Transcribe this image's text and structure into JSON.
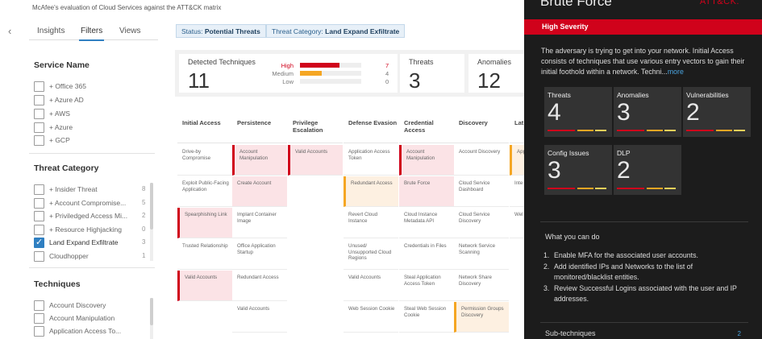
{
  "page": {
    "description": "McAfee's evaluation of Cloud Services against the ATT&CK matrix"
  },
  "tabs": {
    "insights": "Insights",
    "filters": "Filters",
    "views": "Views"
  },
  "service_name": {
    "title": "Service Name",
    "items": [
      "+ Office 365",
      "+ Azure AD",
      "+ AWS",
      "+ Azure",
      "+ GCP"
    ]
  },
  "threat_category": {
    "title": "Threat Category",
    "items": [
      {
        "label": "+ Insider Threat",
        "count": "8",
        "checked": false
      },
      {
        "label": "+ Account Compromise...",
        "count": "5",
        "checked": false
      },
      {
        "label": "+ Priviledged Access Mi...",
        "count": "2",
        "checked": false
      },
      {
        "label": "+ Resource Highjacking",
        "count": "0",
        "checked": false
      },
      {
        "label": "Land Expand Exfiltrate",
        "count": "3",
        "checked": true
      },
      {
        "label": "Cloudhopper",
        "count": "1",
        "checked": false
      }
    ]
  },
  "techniques": {
    "title": "Techniques",
    "items": [
      "Account Discovery",
      "Account Manipulation",
      "Application Access To..."
    ]
  },
  "chips": {
    "status_label": "Status:",
    "status_value": "Potential Threats",
    "category_label": "Threat Category:",
    "category_value": "Land Expand Exfiltrate"
  },
  "summary": {
    "detected_title": "Detected Techniques",
    "detected_value": "11",
    "severity": [
      {
        "label": "High",
        "count": "7",
        "fraction": 0.64,
        "color": "#d0021b"
      },
      {
        "label": "Medium",
        "count": "4",
        "fraction": 0.36,
        "color": "#f5a623"
      },
      {
        "label": "Low",
        "count": "0",
        "fraction": 0.0,
        "color": "#cccccc"
      }
    ],
    "threats_title": "Threats",
    "threats_value": "3",
    "anomalies_title": "Anomalies",
    "anomalies_value": "12"
  },
  "matrix": {
    "columns": [
      {
        "header": "Initial Access",
        "cells": [
          {
            "text": "Drive-by Compromise",
            "style": ""
          },
          {
            "text": "Exploit Public-Facing Application",
            "style": ""
          },
          {
            "text": "Spearphishing Link",
            "style": "red"
          },
          {
            "text": "Trusted Relationship",
            "style": ""
          },
          {
            "text": "Valid Accounts",
            "style": "red"
          }
        ]
      },
      {
        "header": "Persistence",
        "cells": [
          {
            "text": "Account Manipulation",
            "style": "red"
          },
          {
            "text": "Create Account",
            "style": "pink"
          },
          {
            "text": "Implant Container Image",
            "style": ""
          },
          {
            "text": "Office Application Startup",
            "style": ""
          },
          {
            "text": "Redundant Access",
            "style": ""
          },
          {
            "text": "Valid Accounts",
            "style": ""
          }
        ]
      },
      {
        "header": "Privilege Escalation",
        "cells": [
          {
            "text": "Valid Accounts",
            "style": "red"
          }
        ]
      },
      {
        "header": "Defense Evasion",
        "cells": [
          {
            "text": "Application Access Token",
            "style": ""
          },
          {
            "text": "Redundant Access",
            "style": "orange"
          },
          {
            "text": "Revert Cloud Instance",
            "style": ""
          },
          {
            "text": "Unused/ Unsupported Cloud Regions",
            "style": ""
          },
          {
            "text": "Valid Accounts",
            "style": ""
          },
          {
            "text": "Web Session Cookie",
            "style": ""
          }
        ]
      },
      {
        "header": "Credential Access",
        "cells": [
          {
            "text": "Account Manipulation",
            "style": "red"
          },
          {
            "text": "Brute Force",
            "style": "pink"
          },
          {
            "text": "Cloud Instance Metadata API",
            "style": ""
          },
          {
            "text": "Credentials in Files",
            "style": ""
          },
          {
            "text": "Steal Application Access Token",
            "style": ""
          },
          {
            "text": "Steal Web Session Cookie",
            "style": ""
          }
        ]
      },
      {
        "header": "Discovery",
        "cells": [
          {
            "text": "Account Discovery",
            "style": ""
          },
          {
            "text": "Cloud Service Dashboard",
            "style": ""
          },
          {
            "text": "Cloud Service Discovery",
            "style": ""
          },
          {
            "text": "Network Service Scanning",
            "style": ""
          },
          {
            "text": "Network Share Discovery",
            "style": ""
          },
          {
            "text": "Permission Groups Discovery",
            "style": "orange"
          }
        ]
      },
      {
        "header": "Lat Mo",
        "cells": [
          {
            "text": "App Acc",
            "style": "orange"
          },
          {
            "text": "Inte Spe",
            "style": ""
          },
          {
            "text": "Wel Coo",
            "style": ""
          }
        ]
      }
    ]
  },
  "panel": {
    "title": "Brute Force",
    "brand": "ATT&CK.",
    "severity": "High Severity",
    "description": "The adversary is trying to get into your network. Initial Access consists of techniques that use various entry vectors to gain their initial foothold within a network. Techni...",
    "more": "more",
    "metrics": [
      {
        "title": "Threats",
        "value": "4"
      },
      {
        "title": "Anomalies",
        "value": "3"
      },
      {
        "title": "Vulnerabilities",
        "value": "2"
      },
      {
        "title": "Config Issues",
        "value": "3"
      },
      {
        "title": "DLP",
        "value": "2"
      }
    ],
    "what_you_can_do": "What you can do",
    "actions": [
      "Enable MFA for the associated user accounts.",
      "Add identified IPs and Networks to the list of monitored/blacklist entities.",
      "Review Successful Logins associated with the user and IP addresses."
    ],
    "sub_techniques_label": "Sub-techniques",
    "sub_techniques_count": "2"
  },
  "colors": {
    "accent": "#2f7fc1",
    "high": "#d0021b",
    "medium": "#f5a623",
    "panel_bg": "#1c1c1c"
  }
}
